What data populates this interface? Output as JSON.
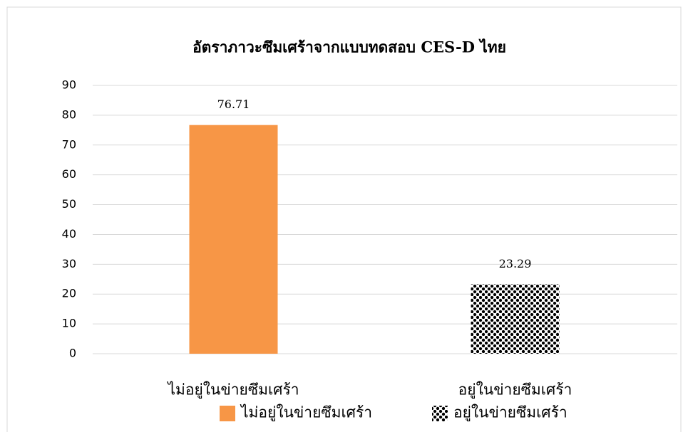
{
  "chart_data": {
    "type": "bar",
    "title": "อัตราภาวะซึมเศร้าจากแบบทดสอบ CES-D ไทย",
    "categories": [
      "ไม่อยู่ในข่ายซึมเศร้า",
      "อยู่ในข่ายซึมเศร้า"
    ],
    "values": [
      76.71,
      23.29
    ],
    "colors": [
      "#f79646",
      "#000000"
    ],
    "patterned": [
      false,
      true
    ],
    "ylim": [
      0,
      90
    ],
    "yticks": [
      0,
      10,
      20,
      30,
      40,
      50,
      60,
      70,
      80,
      90
    ],
    "grid": true,
    "legend": "bottom"
  }
}
